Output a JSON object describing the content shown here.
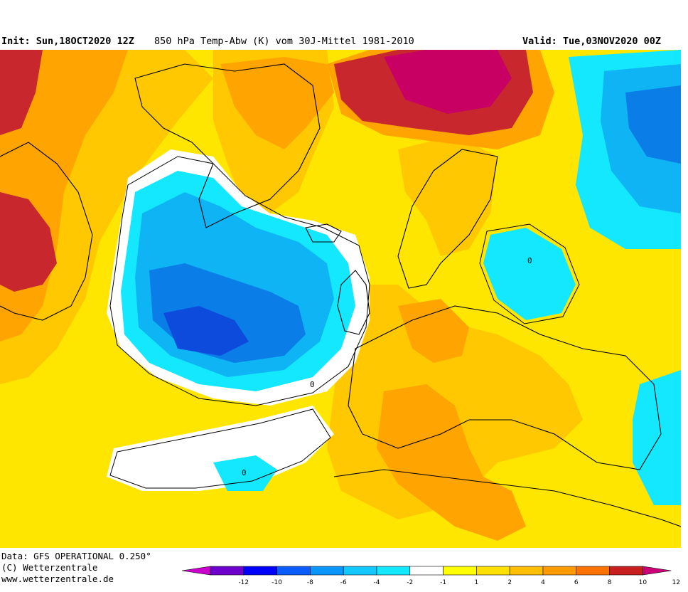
{
  "header": {
    "init": "Init: Sun,18OCT2020 12Z",
    "title": "850 hPa Temp-Abw (K) vom 30J-Mittel 1981-2010",
    "valid": "Valid: Tue,03NOV2020 00Z"
  },
  "footer": {
    "data_source": "Data: GFS OPERATIONAL 0.250°",
    "copyright": "(C) Wetterzentrale",
    "url": "www.wetterzentrale.de"
  },
  "legend": {
    "ticks": [
      "-12",
      "-10",
      "-8",
      "-6",
      "-4",
      "-2",
      "-1",
      "1",
      "2",
      "4",
      "6",
      "8",
      "10",
      "12"
    ],
    "colors": [
      "#cc00cc",
      "#6d00cc",
      "#0000ff",
      "#0a5cff",
      "#0a96ff",
      "#13c8ff",
      "#14e8ff",
      "#ffffff",
      "#ffff00",
      "#ffe000",
      "#ffbe00",
      "#ff9a00",
      "#ff7200",
      "#c82020",
      "#cc0077"
    ]
  },
  "map": {
    "colors": {
      "white": "#ffffff",
      "yellow": "#ffe600",
      "gold": "#ffc800",
      "orange": "#ffa400",
      "dark_orange": "#f07818",
      "red": "#c8282d",
      "magenta": "#c80064",
      "cyan": "#14e8ff",
      "light_blue": "#0fb4f5",
      "blue": "#0a7de6",
      "deep_blue": "#0d4bdc",
      "coast": "#000000"
    },
    "contour_label": "0"
  }
}
